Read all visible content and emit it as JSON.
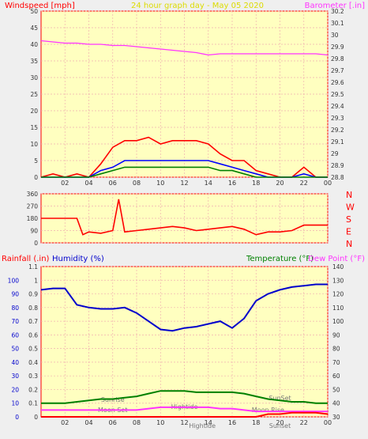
{
  "header": {
    "left": "Windspeed [mph]",
    "center": "24 hour graph day - May 05 2020",
    "right": "Barometer [.in]"
  },
  "colors": {
    "red": "#ff0000",
    "blue": "#0000ff",
    "green": "#008000",
    "magenta": "#ff33ff",
    "darkblue": "#0000cc",
    "plot_bg": "#ffffc0",
    "grid": "#f0b0b0",
    "header_bg": "#f4f4a0",
    "header_text": "#dcdc00"
  },
  "chart_data": [
    {
      "type": "line",
      "name": "Wind / Barometer",
      "x_ticks": [
        "02",
        "04",
        "06",
        "08",
        "10",
        "12",
        "14",
        "16",
        "18",
        "20",
        "22",
        "00"
      ],
      "y_left_ticks": [
        "0",
        "5",
        "10",
        "15",
        "20",
        "25",
        "30",
        "35",
        "40",
        "45",
        "50"
      ],
      "y_right_ticks": [
        "28.8",
        "28.9",
        "29",
        "29.1",
        "29.2",
        "29.3",
        "29.4",
        "29.5",
        "29.6",
        "29.7",
        "29.8",
        "29.9",
        "30",
        "30.1",
        "30.2"
      ],
      "ylim_left": [
        0,
        50
      ],
      "ylim_right": [
        28.8,
        30.2
      ],
      "series": [
        {
          "name": "Barometer",
          "axis": "right",
          "color": "magenta",
          "x": [
            0,
            1,
            2,
            3,
            4,
            5,
            6,
            7,
            8,
            9,
            10,
            11,
            12,
            13,
            14,
            15,
            16,
            17,
            18,
            19,
            20,
            21,
            22,
            23,
            24
          ],
          "y": [
            29.95,
            29.94,
            29.93,
            29.93,
            29.92,
            29.92,
            29.91,
            29.91,
            29.9,
            29.89,
            29.88,
            29.87,
            29.86,
            29.85,
            29.83,
            29.84,
            29.84,
            29.84,
            29.84,
            29.84,
            29.84,
            29.84,
            29.84,
            29.84,
            29.83
          ]
        },
        {
          "name": "Gust",
          "axis": "left",
          "color": "red",
          "x": [
            0,
            1,
            2,
            3,
            4,
            5,
            6,
            7,
            8,
            9,
            10,
            11,
            12,
            13,
            14,
            15,
            16,
            17,
            18,
            19,
            20,
            21,
            22,
            23,
            24
          ],
          "y": [
            0,
            1,
            0,
            1,
            0,
            4,
            9,
            11,
            11,
            12,
            10,
            11,
            11,
            11,
            10,
            7,
            5,
            5,
            2,
            1,
            0,
            0,
            3,
            0,
            0
          ]
        },
        {
          "name": "Average",
          "axis": "left",
          "color": "blue",
          "x": [
            0,
            1,
            2,
            3,
            4,
            5,
            6,
            7,
            8,
            9,
            10,
            11,
            12,
            13,
            14,
            15,
            16,
            17,
            18,
            19,
            20,
            21,
            22,
            23,
            24
          ],
          "y": [
            0,
            0,
            0,
            0,
            0,
            2,
            3,
            5,
            5,
            5,
            5,
            5,
            5,
            5,
            5,
            4,
            3,
            2,
            1,
            0,
            0,
            0,
            1,
            0,
            0
          ]
        },
        {
          "name": "Direction-avg",
          "axis": "left",
          "color": "green",
          "x": [
            0,
            1,
            2,
            3,
            4,
            5,
            6,
            7,
            8,
            9,
            10,
            11,
            12,
            13,
            14,
            15,
            16,
            17,
            18,
            19,
            20,
            21,
            22,
            23,
            24
          ],
          "y": [
            0,
            0,
            0,
            0,
            0,
            1,
            2,
            3,
            3,
            3,
            3,
            3,
            3,
            3,
            3,
            2,
            2,
            1,
            0,
            0,
            0,
            0,
            0,
            0,
            0
          ]
        }
      ]
    },
    {
      "type": "line",
      "name": "Wind direction",
      "x_ticks": [
        "02",
        "04",
        "06",
        "08",
        "10",
        "12",
        "14",
        "16",
        "18",
        "20",
        "22",
        "00"
      ],
      "y_ticks": [
        "0",
        "90",
        "180",
        "270",
        "360"
      ],
      "compass": [
        "N",
        "W",
        "S",
        "E",
        "N"
      ],
      "ylim": [
        0,
        360
      ],
      "series": [
        {
          "name": "Direction",
          "color": "red",
          "x": [
            0,
            2,
            3,
            3.5,
            4,
            5,
            6,
            6.5,
            7,
            8,
            9,
            10,
            11,
            12,
            13,
            14,
            15,
            16,
            17,
            18,
            19,
            20,
            21,
            22,
            23,
            24
          ],
          "y": [
            180,
            180,
            180,
            60,
            80,
            70,
            90,
            320,
            80,
            90,
            100,
            110,
            120,
            110,
            90,
            100,
            110,
            120,
            100,
            60,
            80,
            80,
            90,
            130,
            130,
            130
          ]
        }
      ]
    },
    {
      "type": "line",
      "name": "Rain / Humidity / Temperature",
      "x_ticks": [
        "02",
        "04",
        "06",
        "08",
        "10",
        "12",
        "14",
        "16",
        "18",
        "20",
        "22",
        "00"
      ],
      "y_left_outer_ticks": [
        "0",
        "10",
        "20",
        "30",
        "40",
        "50",
        "60",
        "70",
        "80",
        "90",
        "100"
      ],
      "y_left_inner_ticks": [
        "0",
        "0.1",
        "0.2",
        "0.3",
        "0.4",
        "0.5",
        "0.6",
        "0.7",
        "0.8",
        "0.9",
        "1",
        "1.1"
      ],
      "y_right_ticks": [
        "30",
        "40",
        "50",
        "60",
        "70",
        "80",
        "90",
        "100",
        "110",
        "120",
        "130",
        "140"
      ],
      "labels": {
        "rain": "Rainfall (.in)",
        "humidity": "Humidity (%)",
        "temperature": "Temperature (°F)",
        "dewpoint": "Dew Point (°F)"
      },
      "annotations": [
        "Sunrise",
        "Moon Set",
        "Hightide",
        "SunSet",
        "Moon Rise",
        "Hightide",
        "Sunset"
      ],
      "series": [
        {
          "name": "Humidity",
          "color": "darkblue",
          "x": [
            0,
            1,
            2,
            3,
            4,
            5,
            6,
            7,
            8,
            9,
            10,
            11,
            12,
            13,
            14,
            15,
            16,
            17,
            18,
            19,
            20,
            21,
            22,
            23,
            24
          ],
          "y": [
            93,
            94,
            94,
            82,
            80,
            79,
            79,
            80,
            76,
            70,
            64,
            63,
            65,
            66,
            68,
            70,
            65,
            72,
            85,
            90,
            93,
            95,
            96,
            97,
            97
          ]
        },
        {
          "name": "Temperature",
          "color": "green",
          "x": [
            0,
            1,
            2,
            3,
            4,
            5,
            6,
            7,
            8,
            9,
            10,
            11,
            12,
            13,
            14,
            15,
            16,
            17,
            18,
            19,
            20,
            21,
            22,
            23,
            24
          ],
          "y": [
            40,
            40,
            40,
            41,
            42,
            43,
            43,
            44,
            45,
            47,
            49,
            49,
            49,
            48,
            48,
            48,
            48,
            47,
            45,
            43,
            42,
            41,
            41,
            40,
            40
          ]
        },
        {
          "name": "Dew Point",
          "color": "magenta",
          "x": [
            0,
            1,
            2,
            3,
            4,
            5,
            6,
            7,
            8,
            9,
            10,
            11,
            12,
            13,
            14,
            15,
            16,
            17,
            18,
            19,
            20,
            21,
            22,
            23,
            24
          ],
          "y": [
            35,
            35,
            35,
            35,
            35,
            35,
            35,
            35,
            35,
            36,
            37,
            37,
            37,
            37,
            37,
            36,
            36,
            35,
            34,
            34,
            34,
            34,
            34,
            34,
            34
          ]
        },
        {
          "name": "Rainfall",
          "color": "red",
          "x": [
            0,
            1,
            2,
            3,
            4,
            5,
            6,
            7,
            8,
            9,
            10,
            11,
            12,
            13,
            14,
            15,
            16,
            17,
            18,
            19,
            20,
            21,
            22,
            23,
            24
          ],
          "y": [
            0.0,
            0.0,
            0.0,
            0.0,
            0.0,
            0.0,
            0.0,
            0.0,
            0.0,
            0.0,
            0.0,
            0.0,
            0.0,
            0.0,
            0.0,
            0.0,
            0.0,
            0.0,
            0.0,
            0.02,
            0.02,
            0.03,
            0.03,
            0.03,
            0.02
          ]
        }
      ]
    }
  ]
}
